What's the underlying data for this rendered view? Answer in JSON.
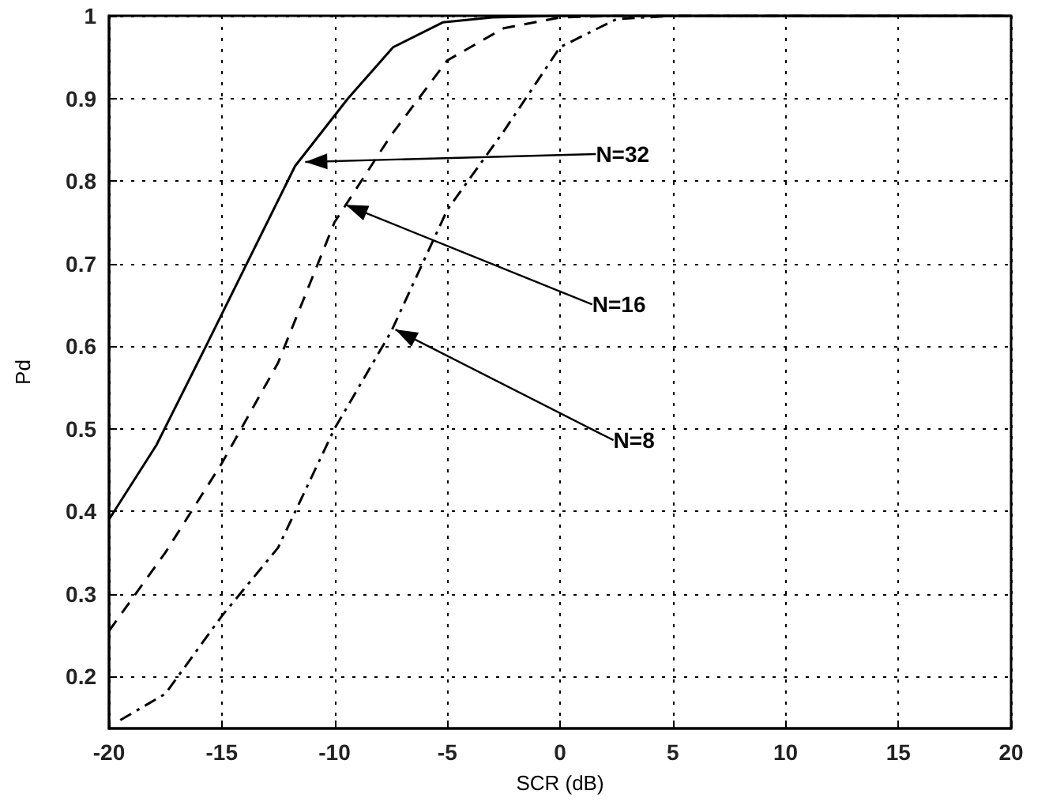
{
  "chart_data": {
    "type": "line",
    "xlabel": "SCR (dB)",
    "ylabel": "Pd",
    "xlim": [
      -20,
      20
    ],
    "xticks": [
      -20,
      -15,
      -10,
      -5,
      0,
      5,
      10,
      15,
      20
    ],
    "ylim": [
      0.137,
      1
    ],
    "yticks": [
      0.2,
      0.3,
      0.4,
      0.5,
      0.6,
      0.7,
      0.8,
      0.9,
      1
    ],
    "grid": true,
    "marker": "none",
    "series": [
      {
        "color": "#000000",
        "line_style": "solid",
        "x": [
          -20,
          -17.9,
          -15.7,
          -11.75,
          -9.4,
          -7.4,
          -5.2,
          -3,
          0,
          5,
          10,
          15,
          20
        ],
        "values": [
          0.39,
          0.48,
          0.6,
          0.818,
          0.9,
          0.962,
          0.992,
          0.998,
          1,
          1,
          1,
          1,
          1
        ]
      },
      {
        "color": "#000000",
        "line_style": "dashed",
        "x": [
          -20,
          -17.5,
          -15,
          -12.5,
          -10,
          -7.5,
          -5,
          -2.5,
          0,
          2.5,
          5,
          10,
          15,
          20
        ],
        "values": [
          0.255,
          0.35,
          0.458,
          0.58,
          0.75,
          0.855,
          0.946,
          0.985,
          0.998,
          1,
          1,
          1,
          1,
          1
        ]
      },
      {
        "color": "#000000",
        "line_style": "dashdot",
        "x": [
          -19.5,
          -17.5,
          -15,
          -12.5,
          -10,
          -7.5,
          -5,
          -2.5,
          0,
          2.5,
          5,
          10,
          15,
          20
        ],
        "values": [
          0.147,
          0.179,
          0.273,
          0.356,
          0.5,
          0.617,
          0.765,
          0.86,
          0.962,
          0.996,
          1,
          1,
          1,
          1
        ]
      }
    ],
    "annotations": [
      {
        "text": "N=32",
        "x": -11.3,
        "y": 0.823
      },
      {
        "text": "N=16",
        "x": -9.5,
        "y": 0.771
      },
      {
        "text": "N=8",
        "x": -7.3,
        "y": 0.62
      }
    ]
  }
}
